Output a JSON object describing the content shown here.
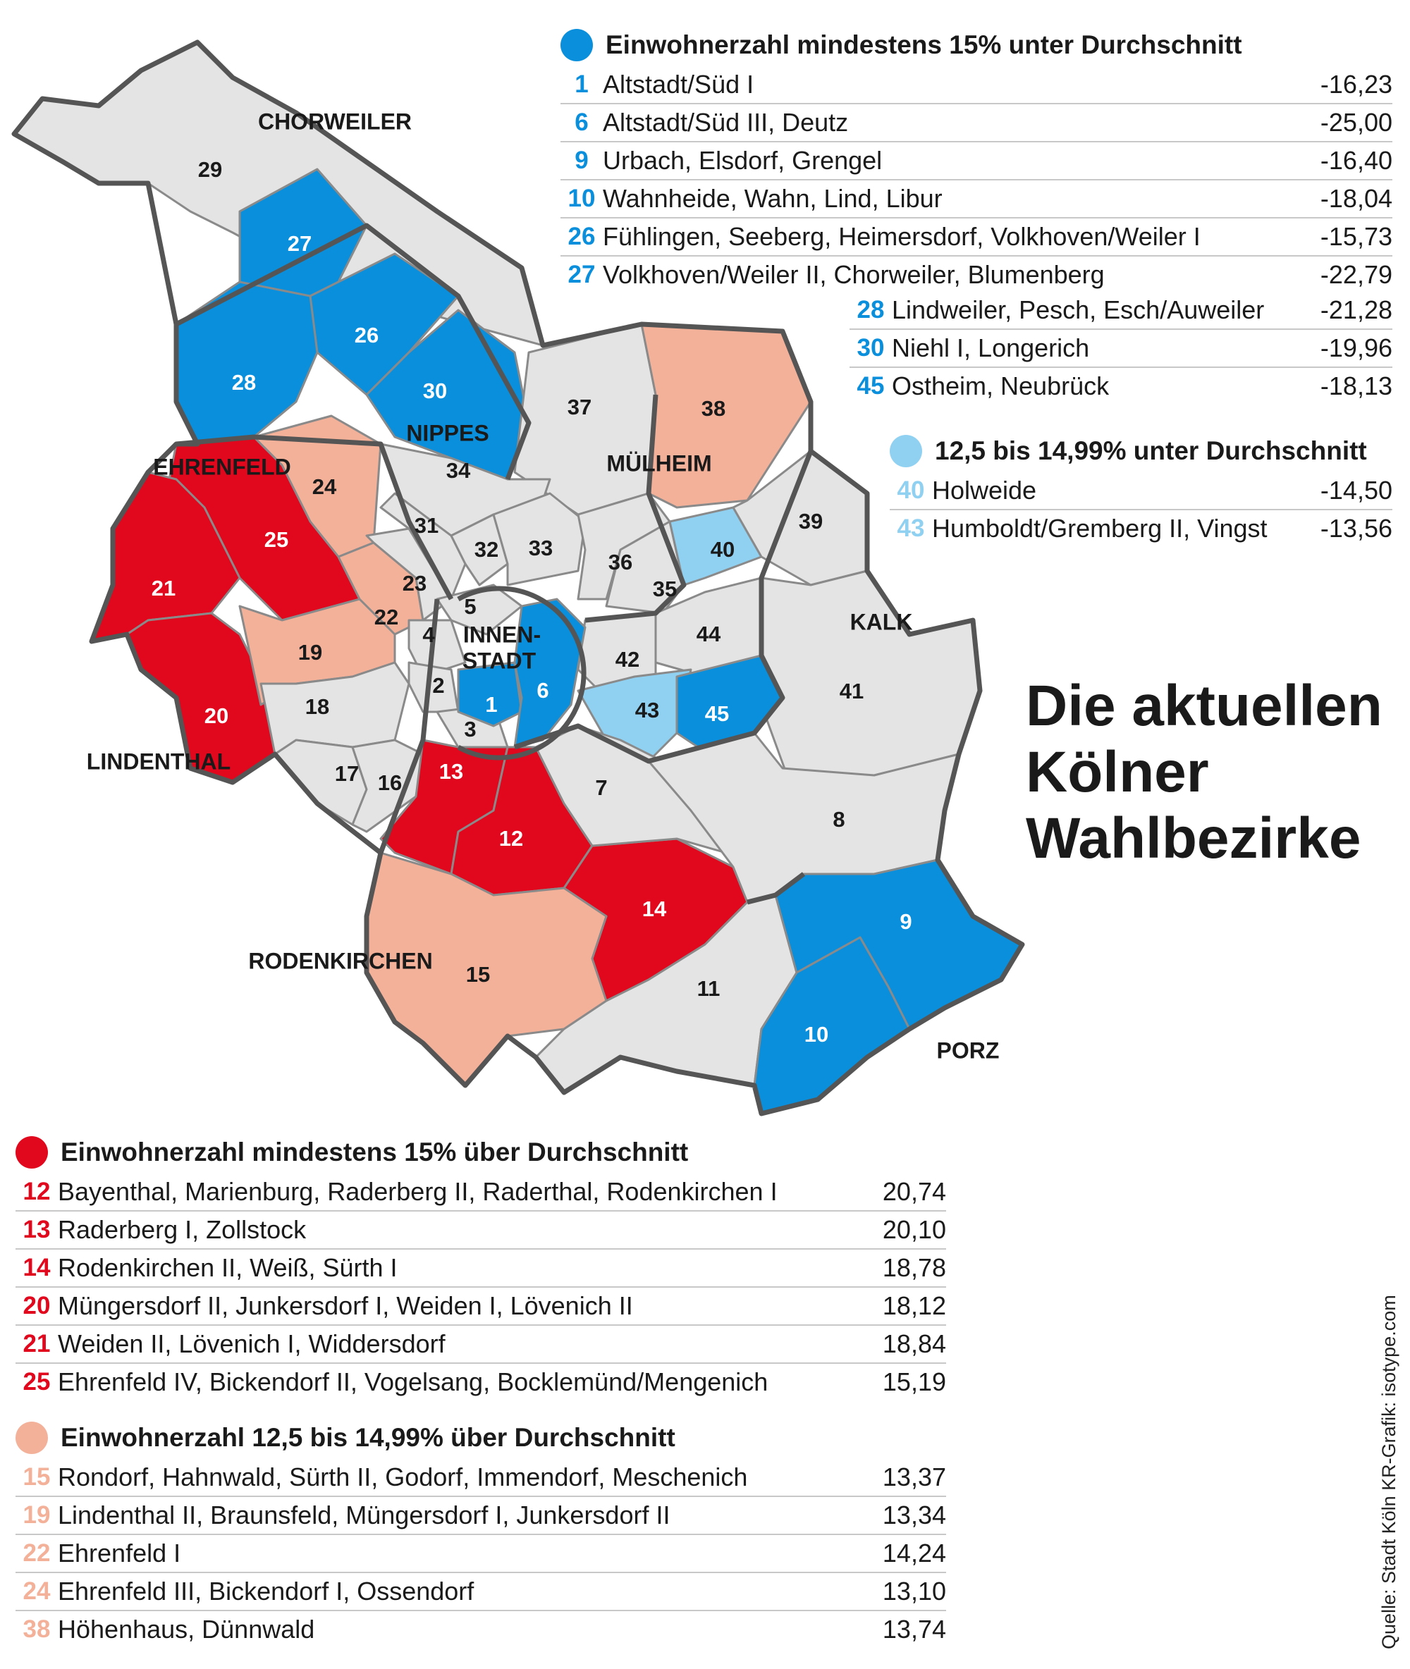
{
  "colors": {
    "blue_strong": "#0a8fdc",
    "blue_light": "#90d1f2",
    "red_strong": "#e1071d",
    "red_light": "#f3b19a",
    "neutral": "#e4e4e4"
  },
  "title": "Die aktuellen Kölner Wahlbezirke",
  "source": "Quelle: Stadt Köln    KR-Grafik: isotype.com",
  "map": {
    "regions": [
      "CHORWEILER",
      "NIPPES",
      "EHRENFELD",
      "MÜLHEIM",
      "KALK",
      "INNEN-",
      "STADT",
      "LINDENTHAL",
      "RODENKIRCHEN",
      "PORZ"
    ],
    "districts": [
      "1",
      "2",
      "3",
      "4",
      "5",
      "6",
      "7",
      "8",
      "9",
      "10",
      "11",
      "12",
      "13",
      "14",
      "15",
      "16",
      "17",
      "18",
      "19",
      "20",
      "21",
      "22",
      "23",
      "24",
      "25",
      "26",
      "27",
      "28",
      "29",
      "30",
      "31",
      "32",
      "33",
      "34",
      "35",
      "36",
      "37",
      "38",
      "39",
      "40",
      "41",
      "42",
      "43",
      "44",
      "45"
    ]
  },
  "legend_blue_strong": {
    "title": "Einwohnerzahl mindestens 15% unter Durchschnitt",
    "rows": [
      {
        "num": "1",
        "name": "Altstadt/Süd I",
        "value": "-16,23"
      },
      {
        "num": "6",
        "name": "Altstadt/Süd III, Deutz",
        "value": "-25,00"
      },
      {
        "num": "9",
        "name": "Urbach, Elsdorf, Grengel",
        "value": "-16,40"
      },
      {
        "num": "10",
        "name": "Wahnheide, Wahn, Lind, Libur",
        "value": "-18,04"
      },
      {
        "num": "26",
        "name": "Fühlingen, Seeberg, Heimersdorf, Volkhoven/Weiler I",
        "value": "-15,73"
      },
      {
        "num": "27",
        "name": "Volkhoven/Weiler II, Chorweiler, Blumenberg",
        "value": "-22,79"
      }
    ],
    "rows_b": [
      {
        "num": "28",
        "name": "Lindweiler, Pesch, Esch/Auweiler",
        "value": "-21,28"
      },
      {
        "num": "30",
        "name": "Niehl I, Longerich",
        "value": "-19,96"
      },
      {
        "num": "45",
        "name": "Ostheim, Neubrück",
        "value": "-18,13"
      }
    ]
  },
  "legend_blue_light": {
    "title": "12,5 bis 14,99% unter Durchschnitt",
    "rows": [
      {
        "num": "40",
        "name": "Holweide",
        "value": "-14,50"
      },
      {
        "num": "43",
        "name": "Humboldt/Gremberg II, Vingst",
        "value": "-13,56"
      }
    ]
  },
  "legend_red_strong": {
    "title": "Einwohnerzahl mindestens 15% über Durchschnitt",
    "rows": [
      {
        "num": "12",
        "name": "Bayenthal, Marienburg, Raderberg II, Raderthal, Rodenkirchen I",
        "value": "20,74"
      },
      {
        "num": "13",
        "name": "Raderberg I, Zollstock",
        "value": "20,10"
      },
      {
        "num": "14",
        "name": "Rodenkirchen II, Weiß, Sürth I",
        "value": "18,78"
      },
      {
        "num": "20",
        "name": "Müngersdorf II, Junkersdorf I, Weiden I, Lövenich II",
        "value": "18,12"
      },
      {
        "num": "21",
        "name": "Weiden II, Lövenich I, Widdersdorf",
        "value": "18,84"
      },
      {
        "num": "25",
        "name": "Ehrenfeld IV, Bickendorf II, Vogelsang, Bocklemünd/Mengenich",
        "value": "15,19"
      }
    ]
  },
  "legend_red_light": {
    "title": "Einwohnerzahl 12,5 bis 14,99% über Durchschnitt",
    "rows": [
      {
        "num": "15",
        "name": "Rondorf, Hahnwald, Sürth II, Godorf, Immendorf, Meschenich",
        "value": "13,37"
      },
      {
        "num": "19",
        "name": "Lindenthal II, Braunsfeld, Müngersdorf I, Junkersdorf II",
        "value": "13,34"
      },
      {
        "num": "22",
        "name": "Ehrenfeld I",
        "value": "14,24"
      },
      {
        "num": "24",
        "name": "Ehrenfeld III, Bickendorf I, Ossendorf",
        "value": "13,10"
      },
      {
        "num": "38",
        "name": "Höhenhaus, Dünnwald",
        "value": "13,74"
      }
    ]
  }
}
